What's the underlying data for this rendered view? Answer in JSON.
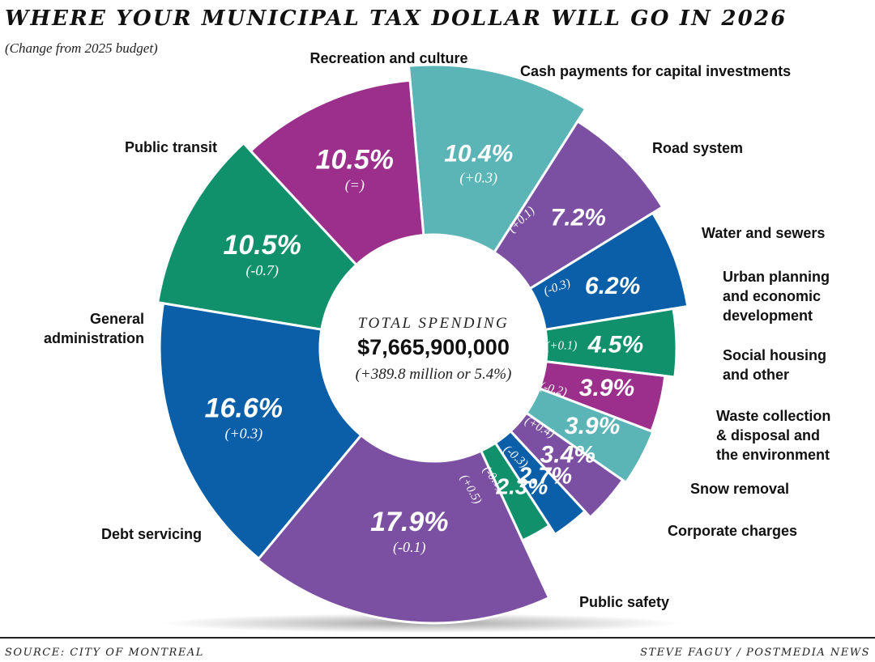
{
  "header": {
    "title": "WHERE YOUR MUNICIPAL TAX DOLLAR WILL GO IN 2026",
    "subtitle": "(Change from 2025 budget)"
  },
  "center": {
    "label": "TOTAL SPENDING",
    "total": "$7,665,900,000",
    "change": "(+389.8 million or 5.4%)"
  },
  "footer": {
    "source": "SOURCE: CITY OF MONTREAL",
    "credit": "STEVE FAGUY / POSTMEDIA NEWS"
  },
  "colors": {
    "purple": "#7b4fa2",
    "blue": "#0a5fa8",
    "teal": "#5bb5b6",
    "green": "#10916b",
    "magenta": "#9b2f8b"
  },
  "chart_data": {
    "type": "pie",
    "title": "WHERE YOUR MUNICIPAL TAX DOLLAR WILL GO IN 2026",
    "subtitle": "(Change from 2025 budget)",
    "slices": [
      {
        "category": "Recreation and culture",
        "value": 10.4,
        "value_label": "10.4%",
        "change": "(+0.3)",
        "color": "#5bb5b6"
      },
      {
        "category": "Cash payments for capital investments",
        "value": 7.2,
        "value_label": "7.2%",
        "change": "(+0.1)",
        "color": "#7b4fa2"
      },
      {
        "category": "Road system",
        "value": 6.2,
        "value_label": "6.2%",
        "change": "(-0.3)",
        "color": "#0a5fa8"
      },
      {
        "category": "Water and sewers",
        "value": 4.5,
        "value_label": "4.5%",
        "change": "(+0.1)",
        "color": "#10916b"
      },
      {
        "category": "Urban planning and economic development",
        "value": 3.9,
        "value_label": "3.9%",
        "change": "(-0.2)",
        "color": "#9b2f8b"
      },
      {
        "category": "Social housing and other",
        "value": 3.9,
        "value_label": "3.9%",
        "change": "(+0.4)",
        "color": "#5bb5b6"
      },
      {
        "category": "Waste collection & disposal and the environment",
        "value": 3.4,
        "value_label": "3.4%",
        "change": "(-0.3)",
        "color": "#7b4fa2"
      },
      {
        "category": "Snow removal",
        "value": 2.7,
        "value_label": "2.7%",
        "change": "(-0.1)",
        "color": "#0a5fa8"
      },
      {
        "category": "Corporate charges",
        "value": 2.3,
        "value_label": "2.3%",
        "change": "(+0.5)",
        "color": "#10916b"
      },
      {
        "category": "Public safety",
        "value": 17.9,
        "value_label": "17.9%",
        "change": "(-0.1)",
        "color": "#7b4fa2"
      },
      {
        "category": "Debt servicing",
        "value": 16.6,
        "value_label": "16.6%",
        "change": "(+0.3)",
        "color": "#0a5fa8"
      },
      {
        "category": "General administration",
        "value": 10.5,
        "value_label": "10.5%",
        "change": "(-0.7)",
        "color": "#10916b"
      },
      {
        "category": "Public transit",
        "value": 10.5,
        "value_label": "10.5%",
        "change": "(=)",
        "color": "#9b2f8b"
      }
    ]
  }
}
